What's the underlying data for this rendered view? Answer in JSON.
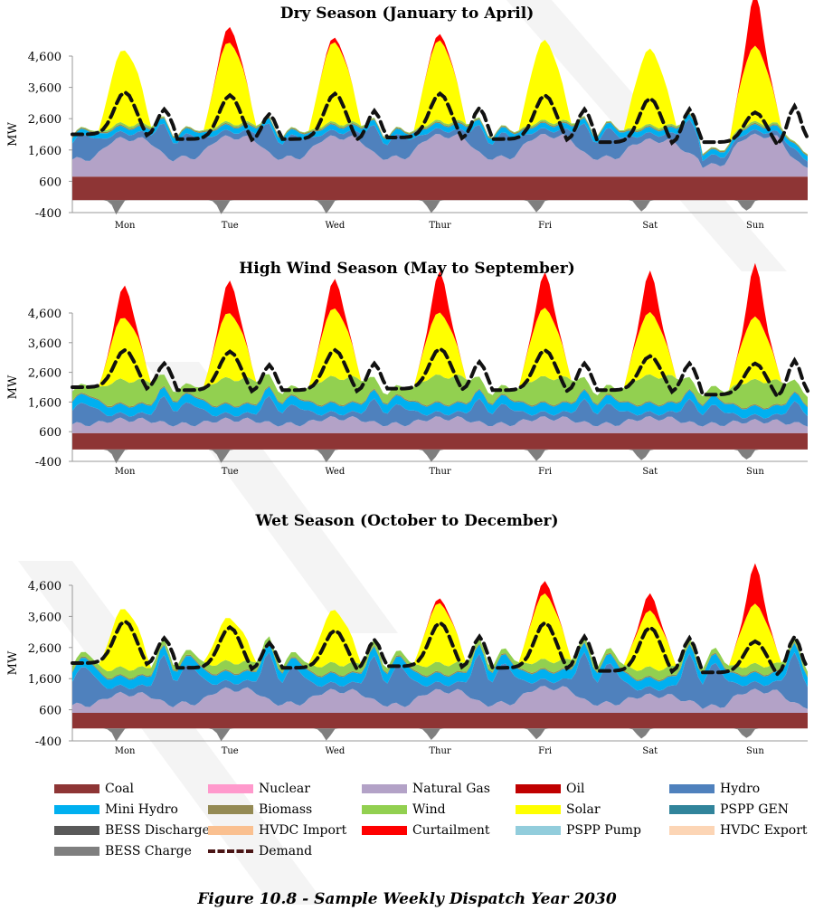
{
  "caption": "Figure 10.8 - Sample Weekly Dispatch Year 2030",
  "legend": [
    {
      "label": "Coal",
      "color": "#8e3535"
    },
    {
      "label": "Nuclear",
      "color": "#ff99cc"
    },
    {
      "label": "Natural Gas",
      "color": "#b3a2c7"
    },
    {
      "label": "Oil",
      "color": "#c00000"
    },
    {
      "label": "Hydro",
      "color": "#4f81bd"
    },
    {
      "label": "Mini Hydro",
      "color": "#00b0f0"
    },
    {
      "label": "Biomass",
      "color": "#948a54"
    },
    {
      "label": "Wind",
      "color": "#92d050"
    },
    {
      "label": "Solar",
      "color": "#ffff00"
    },
    {
      "label": "PSPP GEN",
      "color": "#31849b"
    },
    {
      "label": "BESS Discharge",
      "color": "#595959"
    },
    {
      "label": "HVDC Import",
      "color": "#fac090"
    },
    {
      "label": "Curtailment",
      "color": "#ff0000"
    },
    {
      "label": "PSPP Pump",
      "color": "#92cddc"
    },
    {
      "label": "HVDC Export",
      "color": "#fcd5b5"
    },
    {
      "label": "BESS Charge",
      "color": "#7f7f7f"
    },
    {
      "label": "Demand",
      "color": "#4a1515",
      "dashed": true
    }
  ],
  "chart_data": [
    {
      "type": "area",
      "title": "Dry Season (January to April)",
      "ylabel": "MW",
      "yticks": [
        4600,
        3600,
        2600,
        1600,
        600,
        -400
      ],
      "ylim": [
        -400,
        5000
      ],
      "categories": [
        "Mon",
        "Tue",
        "Wed",
        "Thur",
        "Fri",
        "Sat",
        "Sun"
      ],
      "hours_per_day": 24,
      "coal": 750,
      "gas_day": [
        1200,
        1250,
        1250,
        1300,
        1300,
        1150,
        1300
      ],
      "gas_night": [
        550,
        600,
        600,
        600,
        600,
        600,
        350
      ],
      "hydro_night": [
        800,
        750,
        700,
        700,
        750,
        900,
        200
      ],
      "minihydro": 170,
      "biomass": 40,
      "wind_day": [
        70,
        60,
        60,
        60,
        60,
        60,
        60
      ],
      "wind_night": [
        20,
        20,
        20,
        20,
        20,
        20,
        20
      ],
      "solar_peak": [
        2350,
        2550,
        2550,
        2550,
        2550,
        2400,
        2400
      ],
      "curtail_peak": [
        0,
        500,
        150,
        200,
        0,
        0,
        1700
      ],
      "demand_day": [
        2100,
        1950,
        1950,
        2000,
        1950,
        1850,
        1850
      ],
      "demand_peak": [
        3450,
        3350,
        3400,
        3400,
        3350,
        3250,
        2800
      ],
      "demand_evening": [
        2900,
        2750,
        2850,
        2950,
        2900,
        2900,
        3000
      ],
      "bess_charge": [
        500,
        500,
        500,
        500,
        500,
        500,
        500
      ]
    },
    {
      "type": "area",
      "title": "High Wind Season (May to September)",
      "ylabel": "MW",
      "yticks": [
        4600,
        3600,
        2600,
        1600,
        600,
        -400
      ],
      "ylim": [
        -400,
        5000
      ],
      "categories": [
        "Mon",
        "Tue",
        "Wed",
        "Thur",
        "Fri",
        "Sat",
        "Sun"
      ],
      "hours_per_day": 24,
      "coal": 550,
      "gas_day": [
        450,
        450,
        500,
        500,
        500,
        500,
        400
      ],
      "gas_night": [
        300,
        300,
        300,
        300,
        300,
        300,
        300
      ],
      "hydro_night": [
        700,
        700,
        600,
        600,
        600,
        600,
        550
      ],
      "minihydro": 300,
      "biomass": 40,
      "wind_day": [
        800,
        850,
        850,
        900,
        850,
        900,
        850
      ],
      "wind_night": [
        300,
        300,
        300,
        300,
        300,
        300,
        300
      ],
      "solar_peak": [
        2100,
        2200,
        2300,
        2100,
        2300,
        2100,
        2100
      ],
      "curtail_peak": [
        1100,
        1100,
        1000,
        1400,
        1200,
        1400,
        1800
      ],
      "demand_day": [
        2100,
        2000,
        2000,
        2050,
        2000,
        2000,
        1850
      ],
      "demand_peak": [
        3350,
        3300,
        3350,
        3400,
        3350,
        3150,
        2900
      ],
      "demand_evening": [
        2900,
        2850,
        2900,
        2950,
        2900,
        2900,
        3000
      ],
      "bess_charge": [
        500,
        500,
        500,
        500,
        500,
        500,
        500
      ]
    },
    {
      "type": "area",
      "title": "Wet Season (October to December)",
      "ylabel": "MW",
      "yticks": [
        4600,
        3600,
        2600,
        1600,
        600,
        -400
      ],
      "ylim": [
        -400,
        5000
      ],
      "categories": [
        "Mon",
        "Tue",
        "Wed",
        "Thur",
        "Fri",
        "Sat",
        "Sun"
      ],
      "hours_per_day": 24,
      "coal": 500,
      "gas_day": [
        600,
        750,
        700,
        700,
        800,
        550,
        700
      ],
      "gas_night": [
        250,
        300,
        300,
        250,
        300,
        300,
        200
      ],
      "hydro_night": [
        1300,
        1300,
        1200,
        1300,
        1300,
        1300,
        1400
      ],
      "minihydro": 300,
      "biomass": 40,
      "wind_day": [
        250,
        300,
        300,
        300,
        300,
        300,
        250
      ],
      "wind_night": [
        150,
        150,
        150,
        150,
        150,
        150,
        150
      ],
      "solar_peak": [
        1900,
        1400,
        1700,
        1900,
        2100,
        1800,
        1900
      ],
      "curtail_peak": [
        0,
        0,
        0,
        150,
        400,
        550,
        1300
      ],
      "demand_day": [
        2100,
        1950,
        1950,
        2000,
        1950,
        1850,
        1800
      ],
      "demand_peak": [
        3450,
        3250,
        3150,
        3400,
        3400,
        3250,
        2800
      ],
      "demand_evening": [
        2900,
        2750,
        2850,
        2950,
        2950,
        2900,
        2950
      ],
      "bess_charge": [
        450,
        450,
        450,
        450,
        450,
        450,
        450
      ]
    }
  ]
}
